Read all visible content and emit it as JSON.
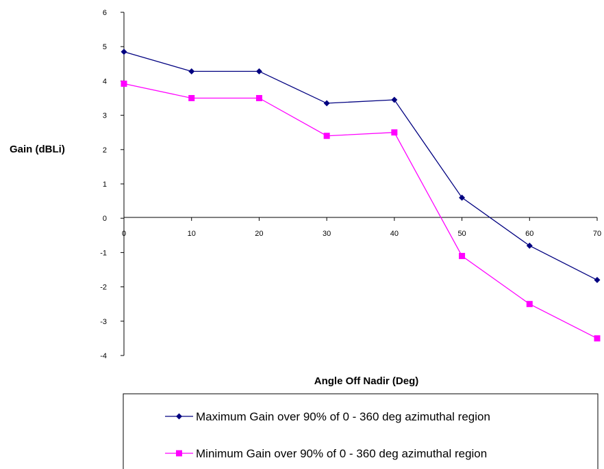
{
  "chart_data": {
    "type": "line",
    "title": "",
    "xlabel": "Angle Off Nadir (Deg)",
    "ylabel": "Gain (dBLi)",
    "x": [
      0,
      10,
      20,
      30,
      40,
      50,
      60,
      70
    ],
    "xlim": [
      0,
      70
    ],
    "ylim": [
      -4,
      6
    ],
    "xticks": [
      "0",
      "10",
      "20",
      "30",
      "40",
      "50",
      "60",
      "70"
    ],
    "yticks": [
      "6",
      "5",
      "4",
      "3",
      "2",
      "1",
      "0",
      "-1",
      "-2",
      "-3",
      "-4"
    ],
    "grid": false,
    "legend_position": "bottom",
    "series": [
      {
        "name": "Maximum Gain over 90% of 0 - 360 deg azimuthal region",
        "color": "#000080",
        "marker": "diamond",
        "values": [
          4.85,
          4.28,
          4.28,
          3.35,
          3.45,
          0.6,
          -0.8,
          -1.8
        ]
      },
      {
        "name": "Minimum Gain over 90% of 0 - 360 deg azimuthal region",
        "color": "#ff00ff",
        "marker": "square",
        "values": [
          3.92,
          3.5,
          3.5,
          2.4,
          2.5,
          -1.1,
          -2.5,
          -3.5
        ]
      }
    ]
  }
}
